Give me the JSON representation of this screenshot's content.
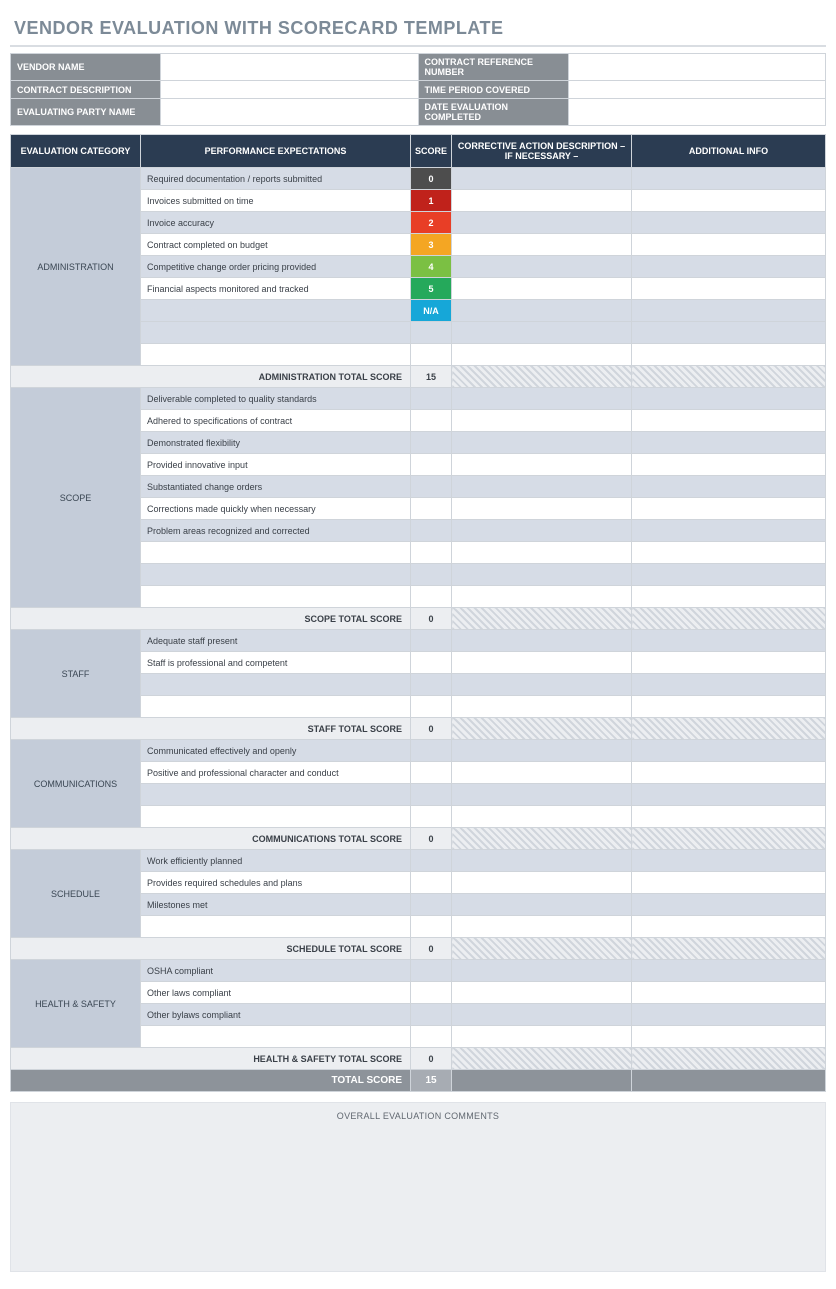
{
  "title": "VENDOR EVALUATION WITH SCORECARD TEMPLATE",
  "colors": {
    "header_dark": "#2b3c52",
    "info_label_bg": "#888e94",
    "category_bg": "#c4ccd9",
    "alt_row_bg": "#d6dce6",
    "total_row_bg": "#eceef1",
    "grand_total_bg": "#8d939a",
    "grand_total_val_bg": "#a7acb3",
    "title_color": "#7c8a97"
  },
  "info_fields": {
    "left": [
      {
        "label": "VENDOR NAME",
        "value": ""
      },
      {
        "label": "CONTRACT DESCRIPTION",
        "value": ""
      },
      {
        "label": "EVALUATING PARTY NAME",
        "value": ""
      }
    ],
    "right": [
      {
        "label": "CONTRACT REFERENCE NUMBER",
        "value": ""
      },
      {
        "label": "TIME PERIOD COVERED",
        "value": ""
      },
      {
        "label": "DATE EVALUATION COMPLETED",
        "value": ""
      }
    ]
  },
  "headers": {
    "category": "EVALUATION CATEGORY",
    "expectations": "PERFORMANCE EXPECTATIONS",
    "score": "SCORE",
    "corrective": "CORRECTIVE ACTION DESCRIPTION – IF NECESSARY –",
    "additional": "ADDITIONAL INFO"
  },
  "score_colors": {
    "0": "#4d4d4d",
    "1": "#c0221b",
    "2": "#e83e26",
    "3": "#f4a623",
    "4": "#7bc043",
    "5": "#25a95b",
    "N/A": "#16a7d8"
  },
  "sections": [
    {
      "name": "ADMINISTRATION",
      "total_label": "ADMINISTRATION TOTAL SCORE",
      "total_score": "15",
      "rows": [
        {
          "exp": "Required documentation / reports submitted",
          "score": "0",
          "alt": true
        },
        {
          "exp": "Invoices submitted on time",
          "score": "1",
          "alt": false
        },
        {
          "exp": "Invoice accuracy",
          "score": "2",
          "alt": true
        },
        {
          "exp": "Contract completed on budget",
          "score": "3",
          "alt": false
        },
        {
          "exp": "Competitive change order pricing provided",
          "score": "4",
          "alt": true
        },
        {
          "exp": "Financial aspects monitored and tracked",
          "score": "5",
          "alt": false
        },
        {
          "exp": "",
          "score": "N/A",
          "alt": true
        },
        {
          "exp": "",
          "score": "",
          "alt": true
        },
        {
          "exp": "",
          "score": "",
          "alt": false
        }
      ]
    },
    {
      "name": "SCOPE",
      "total_label": "SCOPE TOTAL SCORE",
      "total_score": "0",
      "rows": [
        {
          "exp": "Deliverable completed to quality standards",
          "score": "",
          "alt": true
        },
        {
          "exp": "Adhered to specifications of contract",
          "score": "",
          "alt": false
        },
        {
          "exp": "Demonstrated flexibility",
          "score": "",
          "alt": true
        },
        {
          "exp": "Provided innovative input",
          "score": "",
          "alt": false
        },
        {
          "exp": "Substantiated change orders",
          "score": "",
          "alt": true
        },
        {
          "exp": "Corrections made quickly when necessary",
          "score": "",
          "alt": false
        },
        {
          "exp": "Problem areas recognized and corrected",
          "score": "",
          "alt": true
        },
        {
          "exp": "",
          "score": "",
          "alt": false
        },
        {
          "exp": "",
          "score": "",
          "alt": true
        },
        {
          "exp": "",
          "score": "",
          "alt": false
        }
      ]
    },
    {
      "name": "STAFF",
      "total_label": "STAFF TOTAL SCORE",
      "total_score": "0",
      "rows": [
        {
          "exp": "Adequate staff present",
          "score": "",
          "alt": true
        },
        {
          "exp": "Staff is professional and competent",
          "score": "",
          "alt": false
        },
        {
          "exp": "",
          "score": "",
          "alt": true
        },
        {
          "exp": "",
          "score": "",
          "alt": false
        }
      ]
    },
    {
      "name": "COMMUNICATIONS",
      "total_label": "COMMUNICATIONS TOTAL SCORE",
      "total_score": "0",
      "rows": [
        {
          "exp": "Communicated effectively and openly",
          "score": "",
          "alt": true
        },
        {
          "exp": "Positive and professional character and conduct",
          "score": "",
          "alt": false
        },
        {
          "exp": "",
          "score": "",
          "alt": true
        },
        {
          "exp": "",
          "score": "",
          "alt": false
        }
      ]
    },
    {
      "name": "SCHEDULE",
      "total_label": "SCHEDULE TOTAL SCORE",
      "total_score": "0",
      "rows": [
        {
          "exp": "Work efficiently planned",
          "score": "",
          "alt": true
        },
        {
          "exp": "Provides required schedules and plans",
          "score": "",
          "alt": false
        },
        {
          "exp": "Milestones met",
          "score": "",
          "alt": true
        },
        {
          "exp": "",
          "score": "",
          "alt": false
        }
      ]
    },
    {
      "name": "HEALTH & SAFETY",
      "total_label": "HEALTH & SAFETY TOTAL SCORE",
      "total_score": "0",
      "rows": [
        {
          "exp": "OSHA compliant",
          "score": "",
          "alt": true
        },
        {
          "exp": "Other laws compliant",
          "score": "",
          "alt": false
        },
        {
          "exp": "Other bylaws compliant",
          "score": "",
          "alt": true
        },
        {
          "exp": "",
          "score": "",
          "alt": false
        }
      ]
    }
  ],
  "grand_total": {
    "label": "TOTAL SCORE",
    "value": "15"
  },
  "comments_label": "OVERALL EVALUATION COMMENTS"
}
